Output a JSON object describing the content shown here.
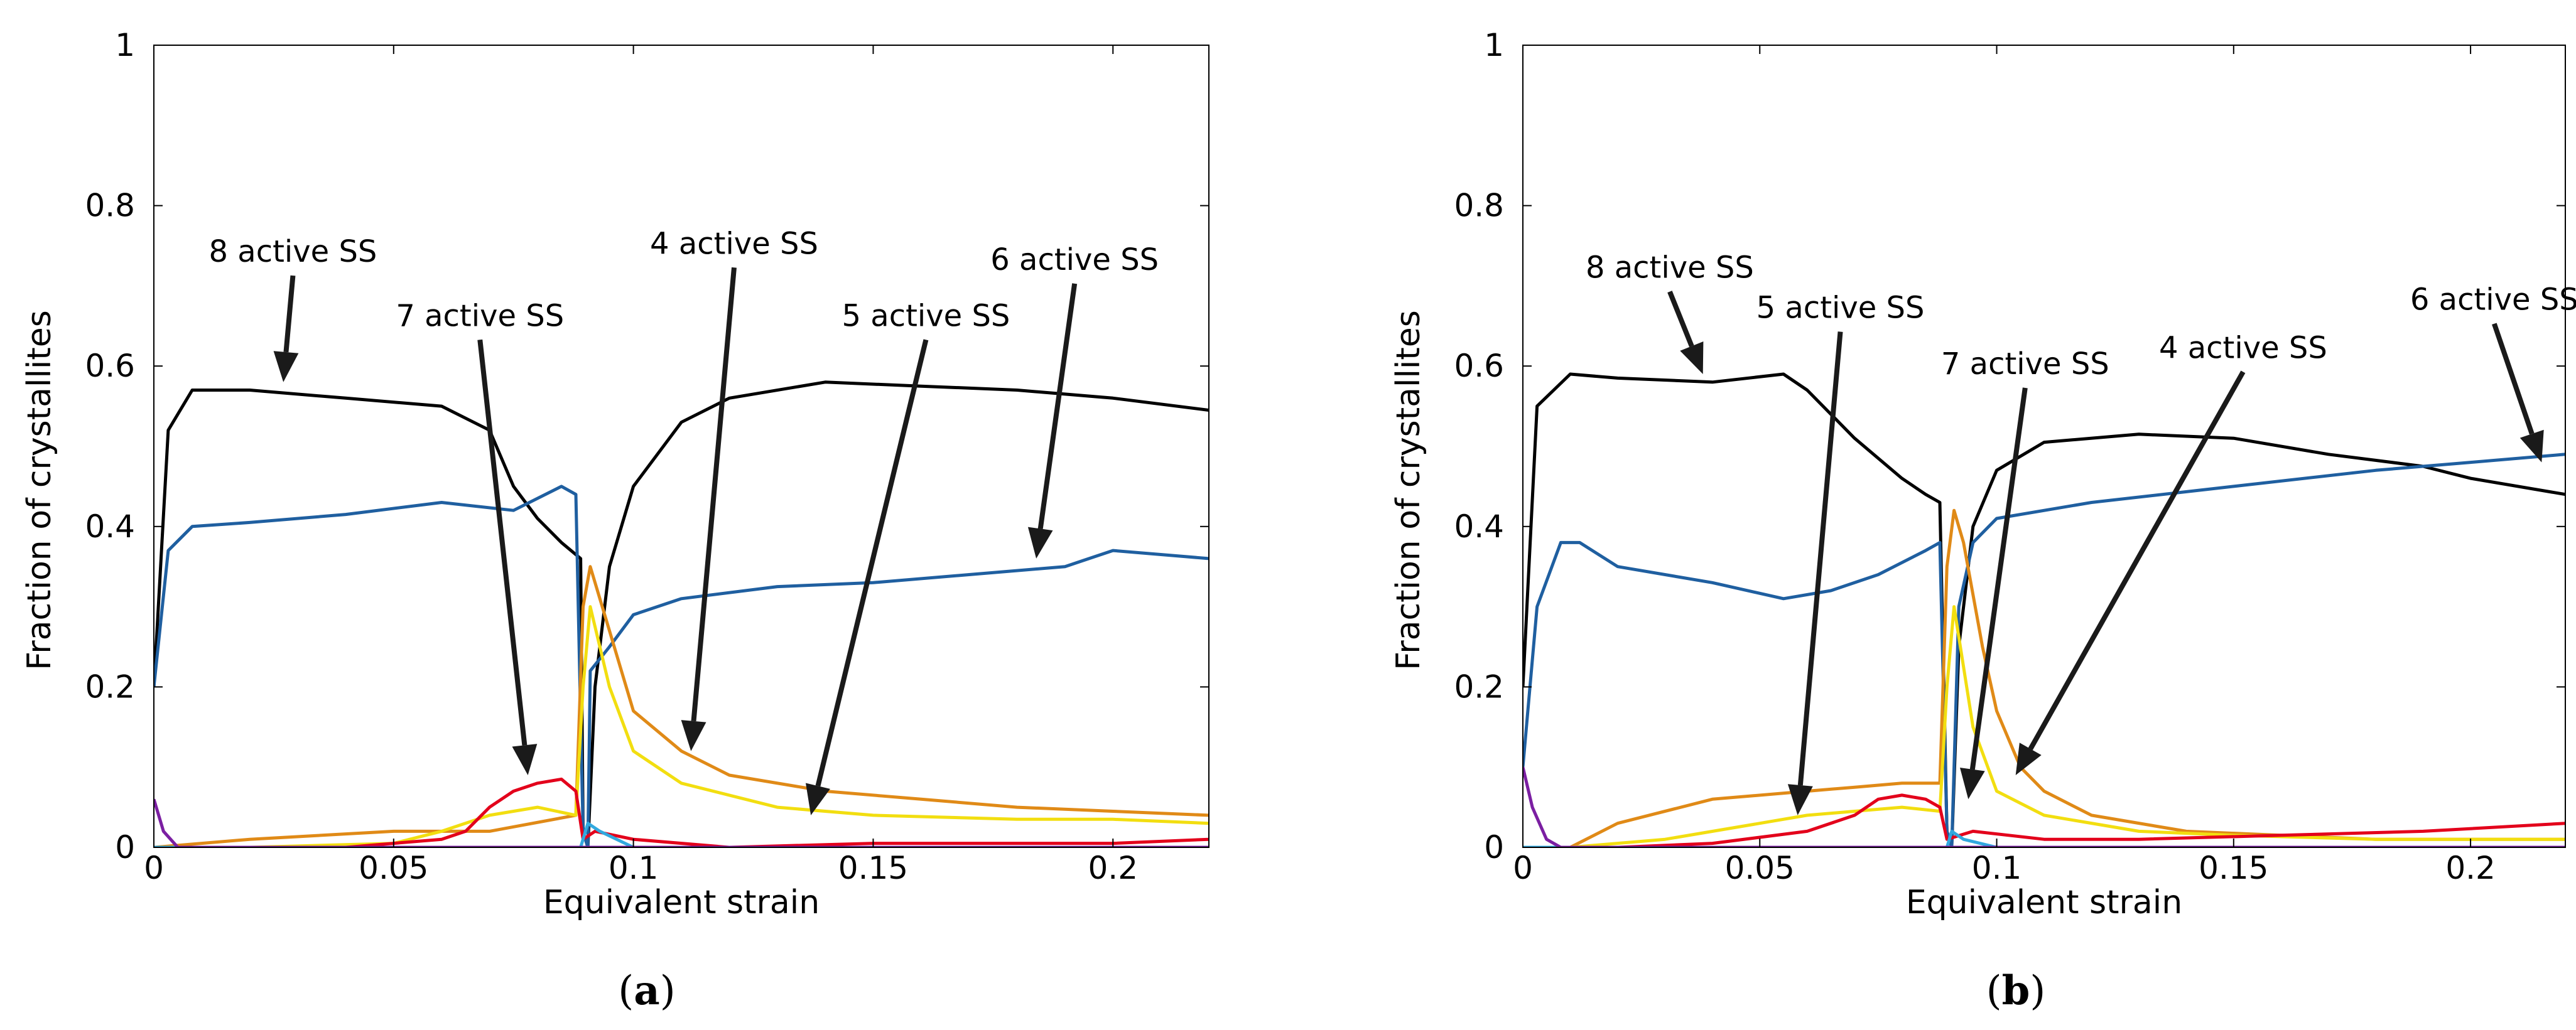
{
  "figure": {
    "captions": [
      "(a)",
      "(b)"
    ]
  },
  "chart_data": [
    {
      "type": "line",
      "caption_letter": "a",
      "xlabel": "Equivalent strain",
      "ylabel": "Fraction of crystallites",
      "xlim": [
        0,
        0.22
      ],
      "ylim": [
        0,
        1
      ],
      "xticks": [
        0,
        0.05,
        0.1,
        0.15,
        0.2
      ],
      "xtick_labels": [
        "0",
        "0.05",
        "0.1",
        "0.15",
        "0.2"
      ],
      "yticks": [
        0,
        0.2,
        0.4,
        0.6,
        0.8,
        1
      ],
      "ytick_labels": [
        "0",
        "0.2",
        "0.4",
        "0.6",
        "0.8",
        "1"
      ],
      "grid": false,
      "series": [
        {
          "key": "8",
          "color": "#000000",
          "points": [
            [
              0,
              0.2
            ],
            [
              0.003,
              0.52
            ],
            [
              0.008,
              0.57
            ],
            [
              0.02,
              0.57
            ],
            [
              0.04,
              0.56
            ],
            [
              0.06,
              0.55
            ],
            [
              0.07,
              0.52
            ],
            [
              0.075,
              0.45
            ],
            [
              0.08,
              0.41
            ],
            [
              0.085,
              0.38
            ],
            [
              0.089,
              0.36
            ],
            [
              0.0895,
              0.02
            ],
            [
              0.0905,
              0.0
            ],
            [
              0.092,
              0.2
            ],
            [
              0.095,
              0.35
            ],
            [
              0.1,
              0.45
            ],
            [
              0.11,
              0.53
            ],
            [
              0.12,
              0.56
            ],
            [
              0.14,
              0.58
            ],
            [
              0.16,
              0.575
            ],
            [
              0.18,
              0.57
            ],
            [
              0.2,
              0.56
            ],
            [
              0.22,
              0.545
            ]
          ]
        },
        {
          "key": "6",
          "color": "#1f5fa0",
          "points": [
            [
              0,
              0.2
            ],
            [
              0.003,
              0.37
            ],
            [
              0.008,
              0.4
            ],
            [
              0.02,
              0.405
            ],
            [
              0.04,
              0.415
            ],
            [
              0.06,
              0.43
            ],
            [
              0.075,
              0.42
            ],
            [
              0.085,
              0.45
            ],
            [
              0.088,
              0.44
            ],
            [
              0.0895,
              0.02
            ],
            [
              0.0905,
              0.0
            ],
            [
              0.091,
              0.22
            ],
            [
              0.095,
              0.25
            ],
            [
              0.1,
              0.29
            ],
            [
              0.11,
              0.31
            ],
            [
              0.13,
              0.325
            ],
            [
              0.15,
              0.33
            ],
            [
              0.17,
              0.34
            ],
            [
              0.19,
              0.35
            ],
            [
              0.2,
              0.37
            ],
            [
              0.22,
              0.36
            ]
          ]
        },
        {
          "key": "4",
          "color": "#e08a17",
          "points": [
            [
              0,
              0.0
            ],
            [
              0.02,
              0.01
            ],
            [
              0.05,
              0.02
            ],
            [
              0.07,
              0.02
            ],
            [
              0.088,
              0.04
            ],
            [
              0.0895,
              0.3
            ],
            [
              0.091,
              0.35
            ],
            [
              0.095,
              0.27
            ],
            [
              0.1,
              0.17
            ],
            [
              0.11,
              0.12
            ],
            [
              0.12,
              0.09
            ],
            [
              0.14,
              0.07
            ],
            [
              0.16,
              0.06
            ],
            [
              0.18,
              0.05
            ],
            [
              0.2,
              0.045
            ],
            [
              0.22,
              0.04
            ]
          ]
        },
        {
          "key": "5",
          "color": "#f2de10",
          "points": [
            [
              0,
              0.0
            ],
            [
              0.02,
              0.0
            ],
            [
              0.05,
              0.005
            ],
            [
              0.06,
              0.02
            ],
            [
              0.07,
              0.04
            ],
            [
              0.08,
              0.05
            ],
            [
              0.088,
              0.04
            ],
            [
              0.0895,
              0.2
            ],
            [
              0.091,
              0.3
            ],
            [
              0.095,
              0.2
            ],
            [
              0.1,
              0.12
            ],
            [
              0.11,
              0.08
            ],
            [
              0.13,
              0.05
            ],
            [
              0.15,
              0.04
            ],
            [
              0.18,
              0.035
            ],
            [
              0.2,
              0.035
            ],
            [
              0.22,
              0.03
            ]
          ]
        },
        {
          "key": "7",
          "color": "#e3001b",
          "points": [
            [
              0,
              0.0
            ],
            [
              0.02,
              0.0
            ],
            [
              0.04,
              0.0
            ],
            [
              0.06,
              0.01
            ],
            [
              0.065,
              0.02
            ],
            [
              0.07,
              0.05
            ],
            [
              0.075,
              0.07
            ],
            [
              0.08,
              0.08
            ],
            [
              0.085,
              0.085
            ],
            [
              0.088,
              0.07
            ],
            [
              0.0895,
              0.01
            ],
            [
              0.092,
              0.02
            ],
            [
              0.1,
              0.01
            ],
            [
              0.12,
              0.0
            ],
            [
              0.15,
              0.005
            ],
            [
              0.18,
              0.005
            ],
            [
              0.2,
              0.005
            ],
            [
              0.22,
              0.01
            ]
          ]
        },
        {
          "key": "3",
          "color": "#31a9df",
          "points": [
            [
              0,
              0.0
            ],
            [
              0.05,
              0.0
            ],
            [
              0.085,
              0.0
            ],
            [
              0.089,
              0.0
            ],
            [
              0.0905,
              0.03
            ],
            [
              0.093,
              0.02
            ],
            [
              0.1,
              0.0
            ],
            [
              0.22,
              0.0
            ]
          ]
        },
        {
          "key": "1",
          "color": "#7b1fa2",
          "points": [
            [
              0,
              0.06
            ],
            [
              0.002,
              0.02
            ],
            [
              0.005,
              0.0
            ],
            [
              0.22,
              0.0
            ]
          ]
        }
      ],
      "annotations": [
        {
          "text": "8 active SS",
          "x": 0.029,
          "y": 0.73,
          "arrow_to": [
            0.027,
            0.58
          ]
        },
        {
          "text": "7 active SS",
          "x": 0.068,
          "y": 0.65,
          "arrow_to": [
            0.078,
            0.09
          ]
        },
        {
          "text": "4 active SS",
          "x": 0.121,
          "y": 0.74,
          "arrow_to": [
            0.112,
            0.12
          ]
        },
        {
          "text": "5 active SS",
          "x": 0.161,
          "y": 0.65,
          "arrow_to": [
            0.137,
            0.04
          ]
        },
        {
          "text": "6 active SS",
          "x": 0.192,
          "y": 0.72,
          "arrow_to": [
            0.184,
            0.36
          ]
        }
      ]
    },
    {
      "type": "line",
      "caption_letter": "b",
      "xlabel": "Equivalent strain",
      "ylabel": "Fraction of crystallites",
      "xlim": [
        0,
        0.22
      ],
      "ylim": [
        0,
        1
      ],
      "xticks": [
        0,
        0.05,
        0.1,
        0.15,
        0.2
      ],
      "xtick_labels": [
        "0",
        "0.05",
        "0.1",
        "0.15",
        "0.2"
      ],
      "yticks": [
        0,
        0.2,
        0.4,
        0.6,
        0.8,
        1
      ],
      "ytick_labels": [
        "0",
        "0.2",
        "0.4",
        "0.6",
        "0.8",
        "1"
      ],
      "grid": false,
      "series": [
        {
          "key": "8",
          "color": "#000000",
          "points": [
            [
              0,
              0.2
            ],
            [
              0.003,
              0.55
            ],
            [
              0.01,
              0.59
            ],
            [
              0.02,
              0.585
            ],
            [
              0.04,
              0.58
            ],
            [
              0.055,
              0.59
            ],
            [
              0.06,
              0.57
            ],
            [
              0.07,
              0.51
            ],
            [
              0.08,
              0.46
            ],
            [
              0.085,
              0.44
            ],
            [
              0.088,
              0.43
            ],
            [
              0.0895,
              0.02
            ],
            [
              0.0905,
              0.0
            ],
            [
              0.092,
              0.25
            ],
            [
              0.095,
              0.4
            ],
            [
              0.1,
              0.47
            ],
            [
              0.11,
              0.505
            ],
            [
              0.13,
              0.515
            ],
            [
              0.15,
              0.51
            ],
            [
              0.17,
              0.49
            ],
            [
              0.19,
              0.475
            ],
            [
              0.2,
              0.46
            ],
            [
              0.22,
              0.44
            ]
          ]
        },
        {
          "key": "6",
          "color": "#1f5fa0",
          "points": [
            [
              0,
              0.1
            ],
            [
              0.003,
              0.3
            ],
            [
              0.008,
              0.38
            ],
            [
              0.012,
              0.38
            ],
            [
              0.02,
              0.35
            ],
            [
              0.04,
              0.33
            ],
            [
              0.055,
              0.31
            ],
            [
              0.065,
              0.32
            ],
            [
              0.075,
              0.34
            ],
            [
              0.085,
              0.37
            ],
            [
              0.088,
              0.38
            ],
            [
              0.0895,
              0.02
            ],
            [
              0.0905,
              0.0
            ],
            [
              0.092,
              0.3
            ],
            [
              0.095,
              0.38
            ],
            [
              0.1,
              0.41
            ],
            [
              0.12,
              0.43
            ],
            [
              0.15,
              0.45
            ],
            [
              0.18,
              0.47
            ],
            [
              0.2,
              0.48
            ],
            [
              0.22,
              0.49
            ]
          ]
        },
        {
          "key": "4",
          "color": "#e08a17",
          "points": [
            [
              0,
              0.0
            ],
            [
              0.01,
              0.0
            ],
            [
              0.02,
              0.03
            ],
            [
              0.04,
              0.06
            ],
            [
              0.06,
              0.07
            ],
            [
              0.07,
              0.075
            ],
            [
              0.08,
              0.08
            ],
            [
              0.088,
              0.08
            ],
            [
              0.0895,
              0.35
            ],
            [
              0.091,
              0.42
            ],
            [
              0.093,
              0.38
            ],
            [
              0.097,
              0.25
            ],
            [
              0.1,
              0.17
            ],
            [
              0.105,
              0.1
            ],
            [
              0.11,
              0.07
            ],
            [
              0.12,
              0.04
            ],
            [
              0.14,
              0.02
            ],
            [
              0.16,
              0.015
            ],
            [
              0.18,
              0.01
            ],
            [
              0.2,
              0.01
            ],
            [
              0.22,
              0.01
            ]
          ]
        },
        {
          "key": "5",
          "color": "#f2de10",
          "points": [
            [
              0,
              0.0
            ],
            [
              0.01,
              0.0
            ],
            [
              0.03,
              0.01
            ],
            [
              0.05,
              0.03
            ],
            [
              0.06,
              0.04
            ],
            [
              0.07,
              0.045
            ],
            [
              0.08,
              0.05
            ],
            [
              0.088,
              0.045
            ],
            [
              0.0895,
              0.2
            ],
            [
              0.091,
              0.3
            ],
            [
              0.095,
              0.15
            ],
            [
              0.1,
              0.07
            ],
            [
              0.11,
              0.04
            ],
            [
              0.13,
              0.02
            ],
            [
              0.15,
              0.015
            ],
            [
              0.18,
              0.01
            ],
            [
              0.22,
              0.01
            ]
          ]
        },
        {
          "key": "7",
          "color": "#e3001b",
          "points": [
            [
              0,
              0.0
            ],
            [
              0.02,
              0.0
            ],
            [
              0.04,
              0.005
            ],
            [
              0.06,
              0.02
            ],
            [
              0.07,
              0.04
            ],
            [
              0.075,
              0.06
            ],
            [
              0.08,
              0.065
            ],
            [
              0.085,
              0.06
            ],
            [
              0.088,
              0.05
            ],
            [
              0.0895,
              0.01
            ],
            [
              0.095,
              0.02
            ],
            [
              0.11,
              0.01
            ],
            [
              0.13,
              0.01
            ],
            [
              0.16,
              0.015
            ],
            [
              0.19,
              0.02
            ],
            [
              0.22,
              0.03
            ]
          ]
        },
        {
          "key": "3",
          "color": "#31a9df",
          "points": [
            [
              0,
              0.0
            ],
            [
              0.085,
              0.0
            ],
            [
              0.0895,
              0.0
            ],
            [
              0.0905,
              0.02
            ],
            [
              0.093,
              0.01
            ],
            [
              0.1,
              0.0
            ],
            [
              0.22,
              0.0
            ]
          ]
        },
        {
          "key": "1",
          "color": "#7b1fa2",
          "points": [
            [
              0,
              0.1
            ],
            [
              0.002,
              0.05
            ],
            [
              0.005,
              0.01
            ],
            [
              0.008,
              0.0
            ],
            [
              0.22,
              0.0
            ]
          ]
        }
      ],
      "annotations": [
        {
          "text": "8 active SS",
          "x": 0.031,
          "y": 0.71,
          "arrow_to": [
            0.038,
            0.59
          ]
        },
        {
          "text": "5 active SS",
          "x": 0.067,
          "y": 0.66,
          "arrow_to": [
            0.058,
            0.04
          ]
        },
        {
          "text": "7 active SS",
          "x": 0.106,
          "y": 0.59,
          "arrow_to": [
            0.094,
            0.06
          ]
        },
        {
          "text": "4 active SS",
          "x": 0.152,
          "y": 0.61,
          "arrow_to": [
            0.104,
            0.09
          ]
        },
        {
          "text": "6 active SS",
          "x": 0.205,
          "y": 0.67,
          "arrow_to": [
            0.215,
            0.48
          ]
        }
      ]
    }
  ]
}
